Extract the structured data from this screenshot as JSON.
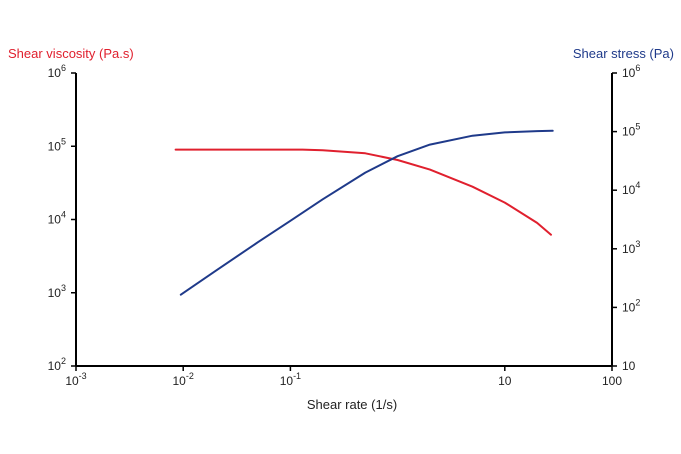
{
  "chart_data": {
    "type": "line",
    "title": "",
    "xlabel": "Shear rate (1/s)",
    "ylabel_left": "Shear viscosity (Pa.s)",
    "ylabel_right": "Shear stress (Pa)",
    "x_scale": "log",
    "xlim": [
      0.001,
      100
    ],
    "x_ticks": [
      {
        "value": 0.001,
        "base": "10",
        "exp": "-3"
      },
      {
        "value": 0.01,
        "base": "10",
        "exp": "-2"
      },
      {
        "value": 0.1,
        "base": "10",
        "exp": "-1"
      },
      {
        "value": 10,
        "base": "10",
        "exp": ""
      },
      {
        "value": 100,
        "base": "100",
        "exp": ""
      }
    ],
    "y_left_scale": "log",
    "y_left_lim": [
      100,
      1000000
    ],
    "y_left_ticks": [
      {
        "value": 1000000,
        "base": "10",
        "exp": "6"
      },
      {
        "value": 100000,
        "base": "10",
        "exp": "5"
      },
      {
        "value": 10000,
        "base": "10",
        "exp": "4"
      },
      {
        "value": 1000,
        "base": "10",
        "exp": "3"
      },
      {
        "value": 100,
        "base": "10",
        "exp": "2"
      }
    ],
    "y_right_scale": "log",
    "y_right_lim": [
      10,
      1000000
    ],
    "y_right_ticks": [
      {
        "value": 1000000,
        "base": "10",
        "exp": "6"
      },
      {
        "value": 100000,
        "base": "10",
        "exp": "5"
      },
      {
        "value": 10000,
        "base": "10",
        "exp": "4"
      },
      {
        "value": 1000,
        "base": "10",
        "exp": "3"
      },
      {
        "value": 100,
        "base": "10",
        "exp": "2"
      },
      {
        "value": 10,
        "base": "10",
        "exp": ""
      }
    ],
    "grid": false,
    "colors": {
      "viscosity": "#e0202e",
      "stress": "#1f3a8a",
      "axis": "#000000"
    },
    "series": [
      {
        "axis": "left",
        "color": "#e0202e",
        "x": [
          0.0085,
          0.02,
          0.05,
          0.1,
          0.13,
          0.2,
          0.5,
          1,
          2,
          5,
          10,
          20,
          27
        ],
        "y": [
          90000,
          90000,
          90000,
          90000,
          90000,
          88000,
          80000,
          65000,
          48000,
          28000,
          17000,
          9000,
          6200
        ]
      },
      {
        "axis": "right",
        "color": "#1f3a8a",
        "x": [
          0.0095,
          0.02,
          0.05,
          0.1,
          0.2,
          0.5,
          1,
          2,
          5,
          10,
          20,
          28
        ],
        "y": [
          165,
          420,
          1300,
          3000,
          7000,
          20000,
          38000,
          60000,
          85000,
          97000,
          102000,
          103000
        ]
      }
    ]
  }
}
